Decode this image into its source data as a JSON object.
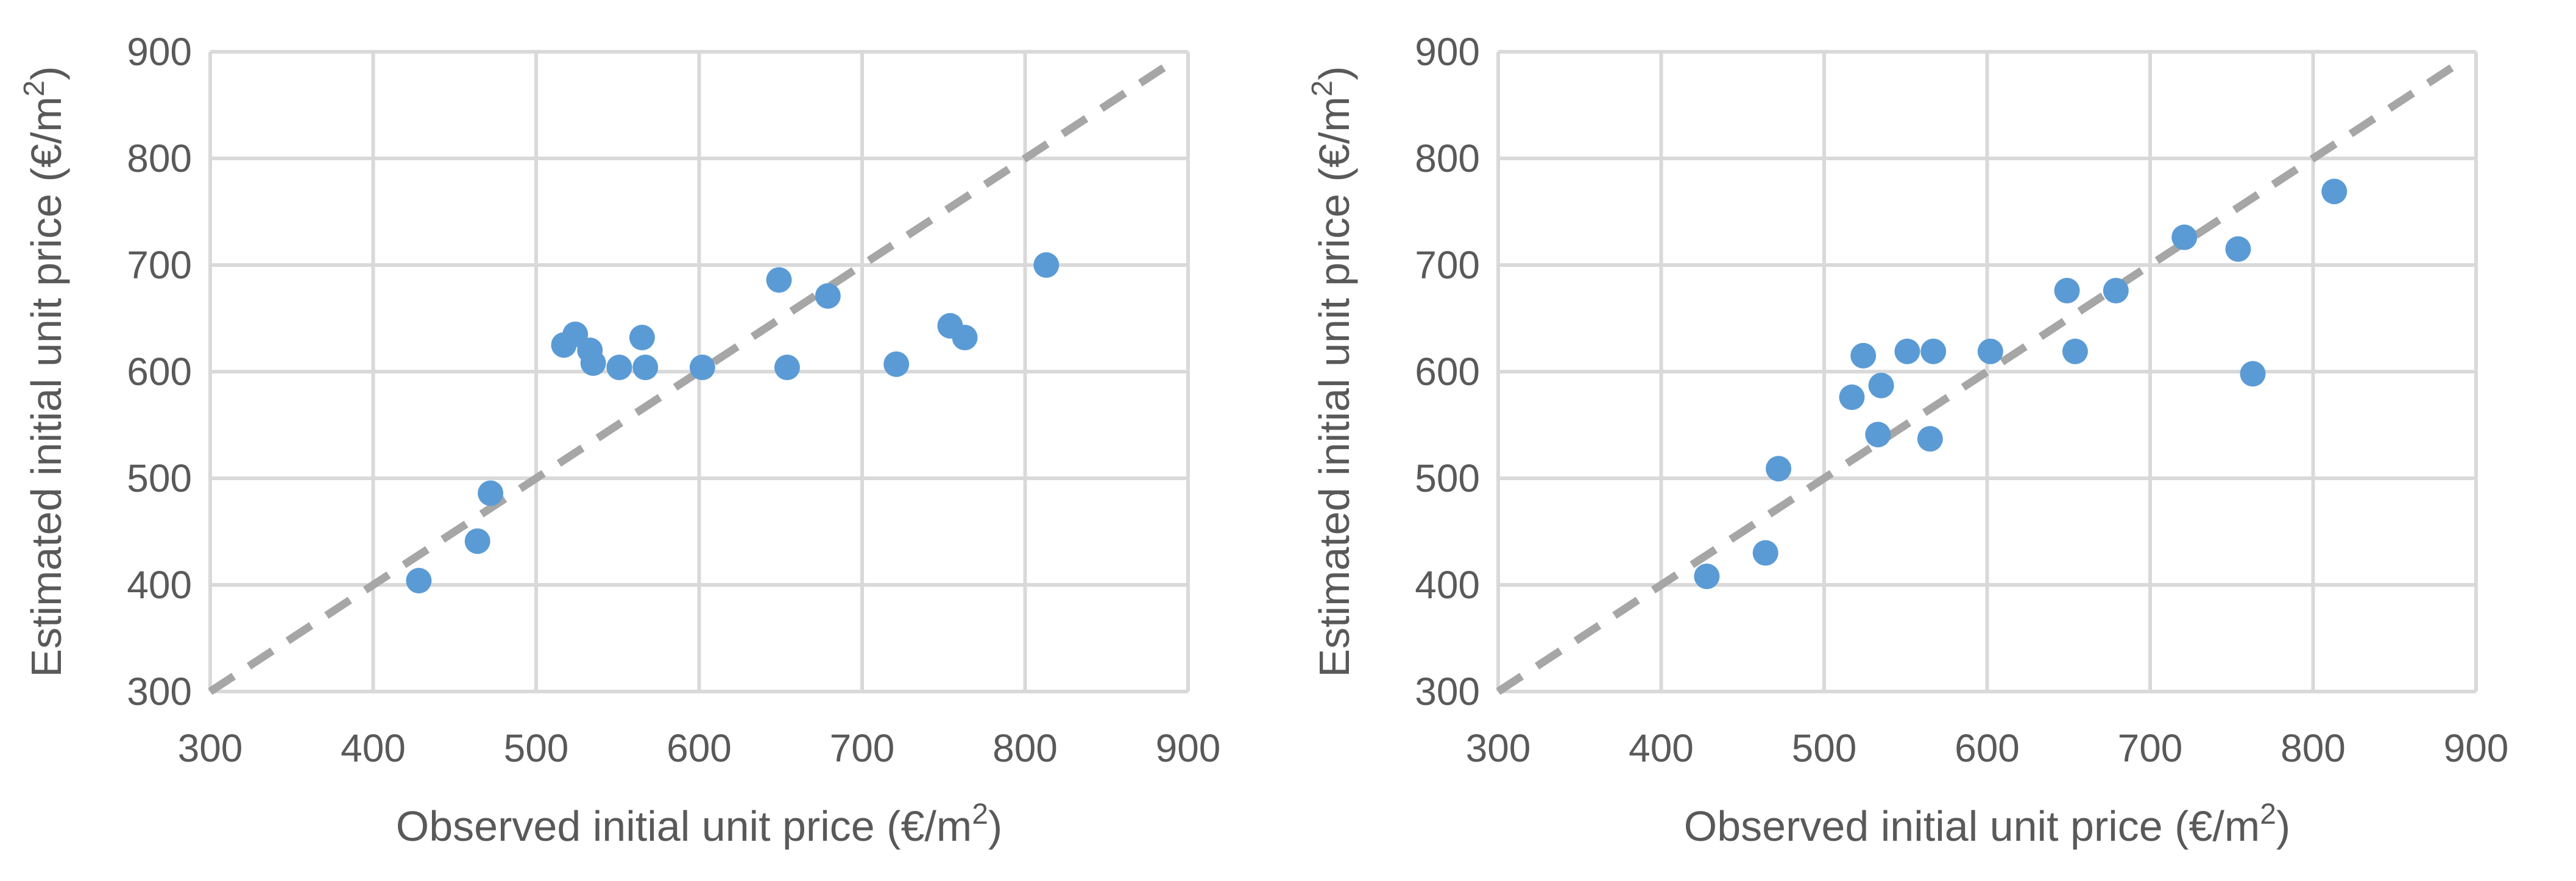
{
  "chart_data": [
    {
      "type": "scatter",
      "xlabel": "Observed initial unit price (€/m",
      "ylabel": "Estimated initial unit price (€/m",
      "label_superscript": "2",
      "label_closing": ")",
      "xlim": [
        300,
        900
      ],
      "ylim": [
        300,
        900
      ],
      "xticks": [
        "300",
        "400",
        "500",
        "600",
        "700",
        "800",
        "900"
      ],
      "yticks": [
        "300",
        "400",
        "500",
        "600",
        "700",
        "800",
        "900"
      ],
      "grid": true,
      "reference_line": {
        "style": "dashed",
        "color": "#a6a6a6",
        "x": [
          300,
          890
        ],
        "y": [
          300,
          890
        ]
      },
      "point_color": "#5b9bd5",
      "series": [
        {
          "x": [
            428,
            464,
            472,
            517,
            524,
            533,
            535,
            551,
            565,
            567,
            602,
            649,
            654,
            679,
            721,
            754,
            763,
            813
          ],
          "y": [
            404,
            441,
            486,
            625,
            635,
            620,
            608,
            604,
            632,
            604,
            604,
            686,
            604,
            671,
            607,
            643,
            632,
            700
          ]
        }
      ]
    },
    {
      "type": "scatter",
      "xlabel": "Observed initial unit price (€/m",
      "ylabel": "Estimated initial unit price (€/m",
      "label_superscript": "2",
      "label_closing": ")",
      "xlim": [
        300,
        900
      ],
      "ylim": [
        300,
        900
      ],
      "xticks": [
        "300",
        "400",
        "500",
        "600",
        "700",
        "800",
        "900"
      ],
      "yticks": [
        "300",
        "400",
        "500",
        "600",
        "700",
        "800",
        "900"
      ],
      "grid": true,
      "reference_line": {
        "style": "dashed",
        "color": "#a6a6a6",
        "x": [
          300,
          890
        ],
        "y": [
          300,
          890
        ]
      },
      "point_color": "#5b9bd5",
      "series": [
        {
          "x": [
            428,
            464,
            472,
            517,
            524,
            533,
            535,
            551,
            565,
            567,
            602,
            649,
            654,
            679,
            721,
            754,
            763,
            813
          ],
          "y": [
            408,
            430,
            509,
            576,
            615,
            541,
            587,
            619,
            537,
            619,
            619,
            676,
            619,
            676,
            726,
            715,
            598,
            769
          ]
        }
      ]
    }
  ]
}
